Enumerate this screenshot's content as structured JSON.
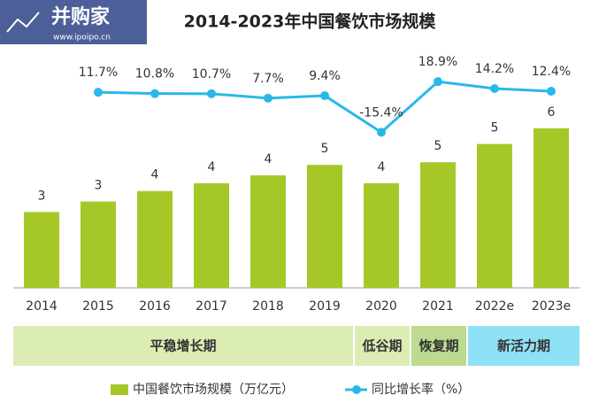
{
  "logo": {
    "name": "并购家",
    "url": "www.ipoipo.cn"
  },
  "chart_data": {
    "type": "bar-line",
    "title": "2014-2023年中国餐饮市场规模",
    "categories": [
      "2014",
      "2015",
      "2016",
      "2017",
      "2018",
      "2019",
      "2020",
      "2021",
      "2022e",
      "2023e"
    ],
    "series": [
      {
        "name": "中国餐饮市场规模（万亿元）",
        "color": "#a5c828",
        "type": "bar",
        "values": [
          2.9,
          3.3,
          3.7,
          4.0,
          4.3,
          4.7,
          4.0,
          4.8,
          5.5,
          6.1
        ],
        "value_labels": [
          "3",
          "3",
          "4",
          "4",
          "4",
          "5",
          "4",
          "5",
          "5",
          "6"
        ]
      },
      {
        "name": "同比增长率（%）",
        "color": "#29b8ea",
        "type": "line",
        "axis": "y2",
        "values": [
          null,
          11.7,
          10.8,
          10.7,
          7.7,
          9.4,
          -15.4,
          18.9,
          14.2,
          12.4
        ],
        "value_labels": [
          null,
          "11.7%",
          "10.8%",
          "10.7%",
          "7.7%",
          "9.4%",
          "-15.4%",
          "18.9%",
          "14.2%",
          "12.4%"
        ]
      }
    ],
    "ylim": [
      0,
      6.5
    ],
    "y2lim": [
      -20,
      25
    ],
    "phases": [
      {
        "label": "平稳增长期",
        "color": "#dcedb4"
      },
      {
        "label": "低谷期",
        "color": "#dcedb4"
      },
      {
        "label": "恢复期",
        "color": "#bcdb8e"
      },
      {
        "label": "新活力期",
        "color": "#8fe1f6"
      }
    ]
  }
}
